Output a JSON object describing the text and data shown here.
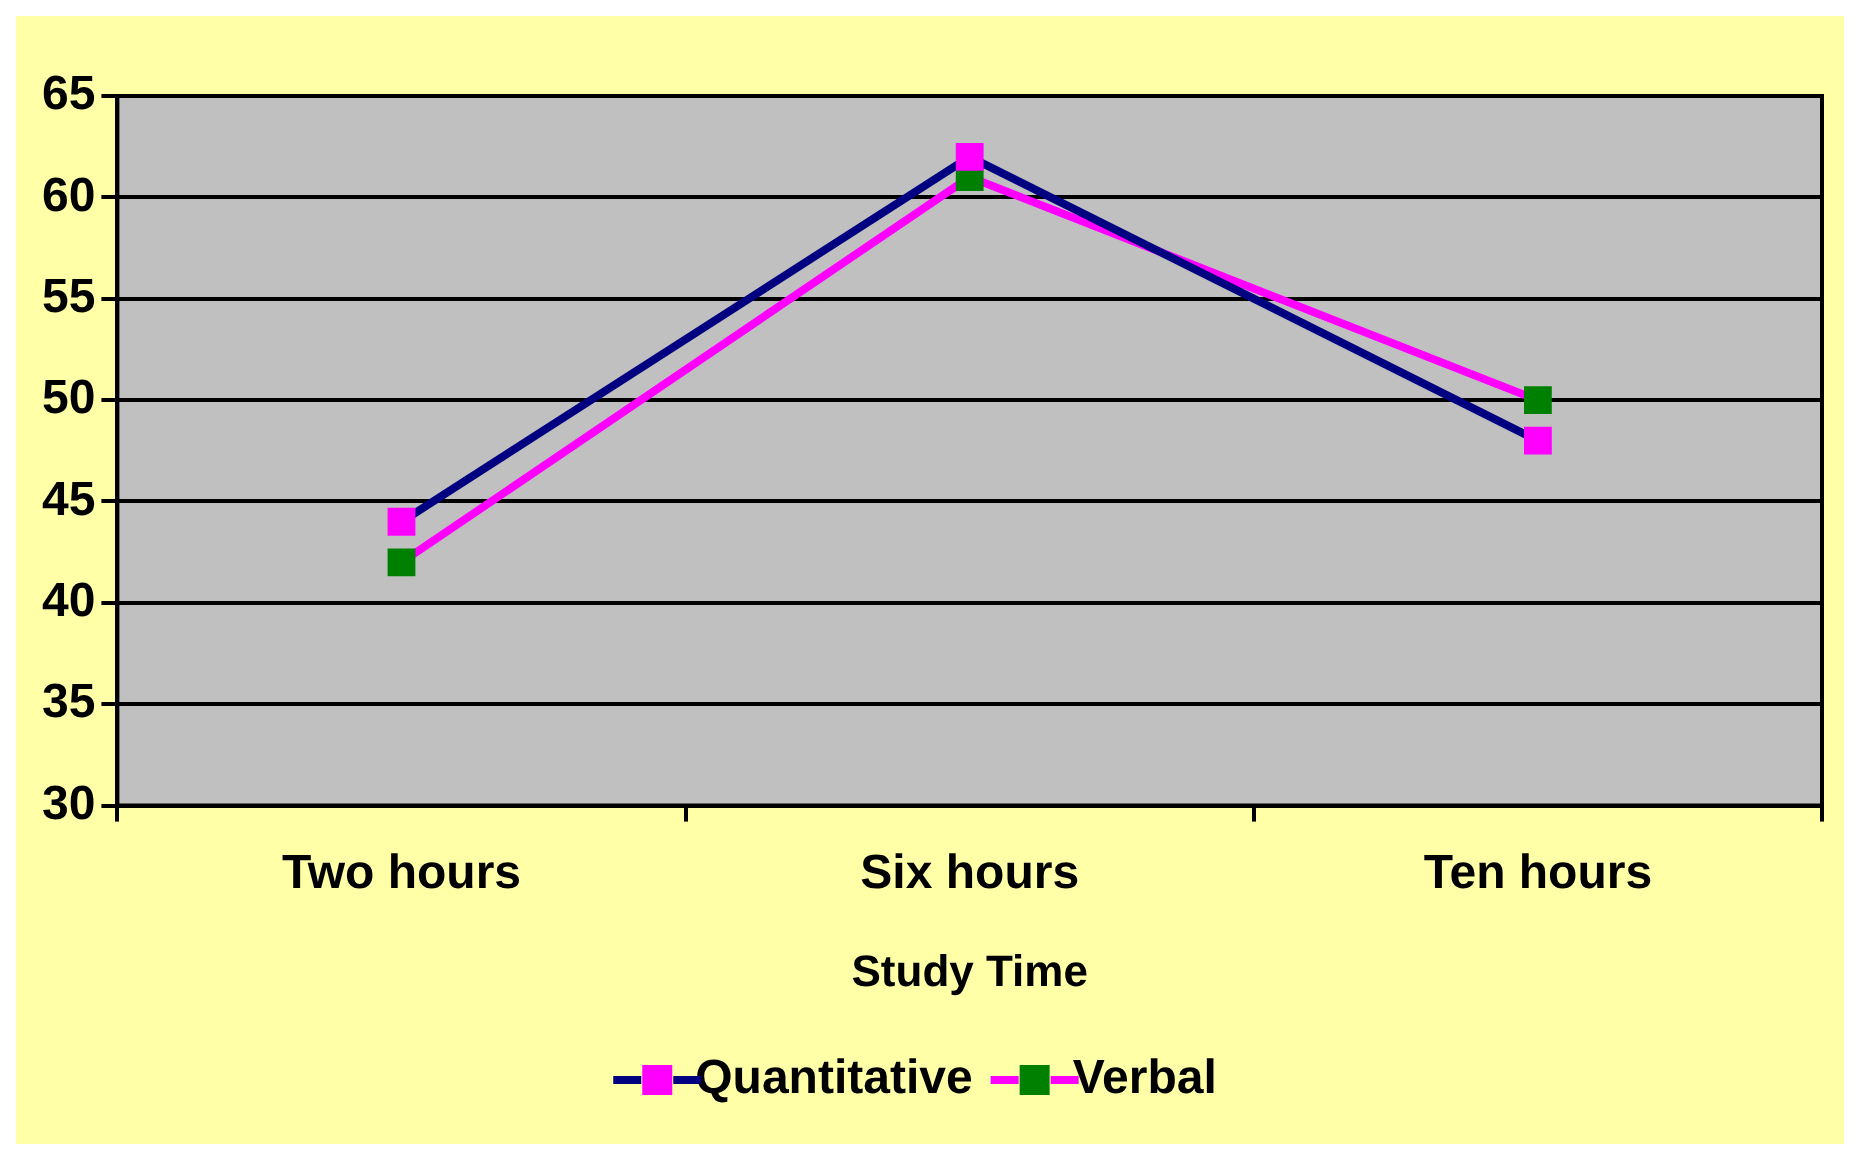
{
  "chart_data": {
    "type": "line",
    "xlabel": "Study Time",
    "categories": [
      "Two hours",
      "Six hours",
      "Ten hours"
    ],
    "series": [
      {
        "name": "Quantitative",
        "color": "#000080",
        "colors": [
          "#ff00ff",
          "#ff00ff",
          "#ff00ff"
        ],
        "values": [
          44,
          62,
          48
        ]
      },
      {
        "name": "Verbal",
        "color": "#ff00ff",
        "colors": [
          "#008000",
          "#008000",
          "#008000"
        ],
        "values": [
          42,
          61,
          50
        ]
      }
    ],
    "ylim": [
      30,
      65
    ],
    "yticks": [
      30,
      35,
      40,
      45,
      50,
      55,
      60,
      65
    ],
    "grid": "y",
    "legend": "bottom",
    "marker": "square",
    "line_style": "solid"
  }
}
